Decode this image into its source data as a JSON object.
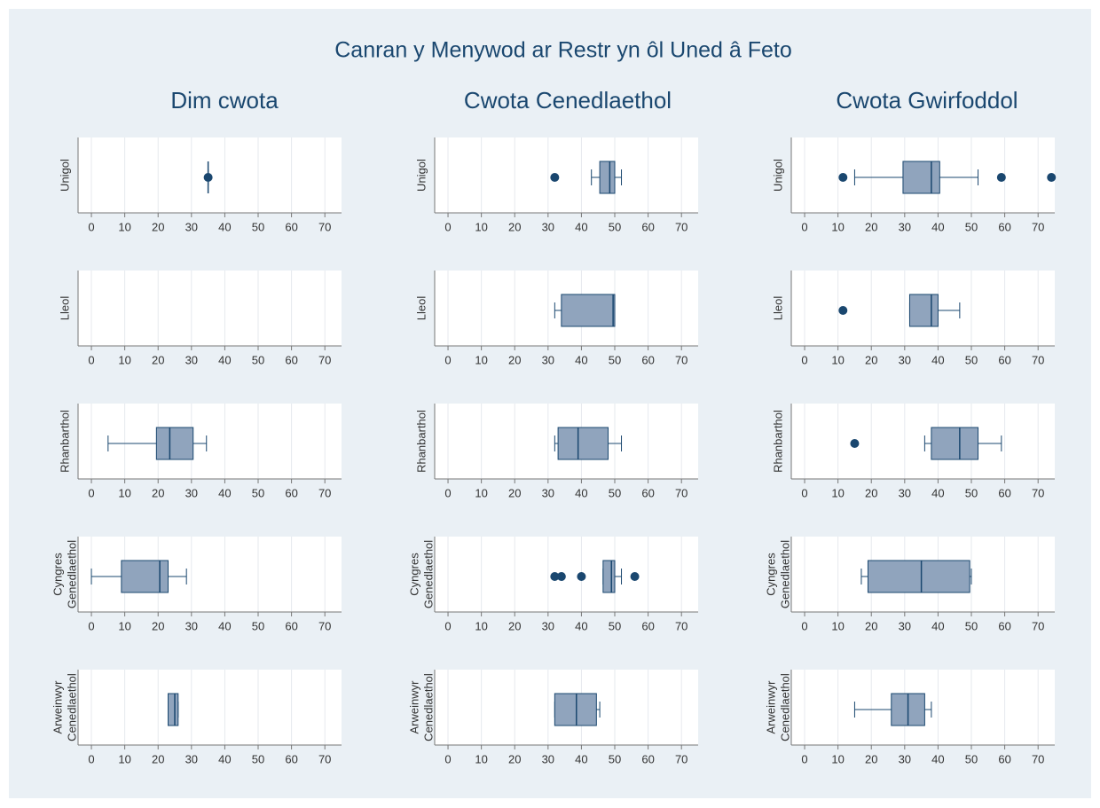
{
  "chart_data": {
    "type": "box",
    "title": "Canran y Menywod ar Restr yn ôl Uned â Feto",
    "column_titles": [
      "Dim cwota",
      "Cwota Cenedlaethol",
      "Cwota Gwirfoddol"
    ],
    "row_labels": [
      [
        "Unigol"
      ],
      [
        "Lleol"
      ],
      [
        "Rhanbarthol"
      ],
      [
        "Cyngres",
        "Genedlaethol"
      ],
      [
        "Arweinwyr",
        "Cenedlaethol"
      ]
    ],
    "xlim": [
      -4,
      75
    ],
    "xticks": [
      0,
      10,
      20,
      30,
      40,
      50,
      60,
      70
    ],
    "grid": true,
    "box_color": "#90a4bd",
    "line_color": "#1a476f",
    "panels": [
      [
        {
          "min": 35,
          "q1": 35,
          "median": 35,
          "q3": 35,
          "max": 35,
          "outliers": [
            35
          ]
        },
        {
          "min": 43,
          "q1": 45.5,
          "median": 48.5,
          "q3": 50,
          "max": 52,
          "outliers": [
            32
          ]
        },
        {
          "min": 15,
          "q1": 29.5,
          "median": 38,
          "q3": 40.5,
          "max": 52,
          "outliers": [
            11.5,
            59,
            74
          ]
        }
      ],
      [
        null,
        {
          "min": 32,
          "q1": 34,
          "median": 49.5,
          "q3": 50,
          "max": 50,
          "outliers": []
        },
        {
          "min": 31.5,
          "q1": 31.5,
          "median": 38,
          "q3": 40,
          "max": 46.5,
          "outliers": [
            11.5
          ]
        }
      ],
      [
        {
          "min": 5,
          "q1": 19.5,
          "median": 23.5,
          "q3": 30.5,
          "max": 34.5,
          "outliers": []
        },
        {
          "min": 32,
          "q1": 33,
          "median": 39,
          "q3": 48,
          "max": 52,
          "outliers": []
        },
        {
          "min": 36,
          "q1": 38,
          "median": 46.5,
          "q3": 52,
          "max": 59,
          "outliers": [
            15
          ]
        }
      ],
      [
        {
          "min": 0,
          "q1": 9,
          "median": 20.5,
          "q3": 23,
          "max": 28.5,
          "outliers": []
        },
        {
          "min": 46.5,
          "q1": 46.5,
          "median": 49,
          "q3": 50,
          "max": 52,
          "outliers": [
            32,
            34,
            40,
            56
          ]
        },
        {
          "min": 17,
          "q1": 19,
          "median": 35,
          "q3": 49.5,
          "max": 50,
          "outliers": []
        }
      ],
      [
        {
          "min": 23,
          "q1": 23,
          "median": 25,
          "q3": 26,
          "max": 26,
          "outliers": []
        },
        {
          "min": 32,
          "q1": 32,
          "median": 38.5,
          "q3": 44.5,
          "max": 45.5,
          "outliers": []
        },
        {
          "min": 15,
          "q1": 26,
          "median": 31,
          "q3": 36,
          "max": 38,
          "outliers": []
        }
      ]
    ]
  }
}
